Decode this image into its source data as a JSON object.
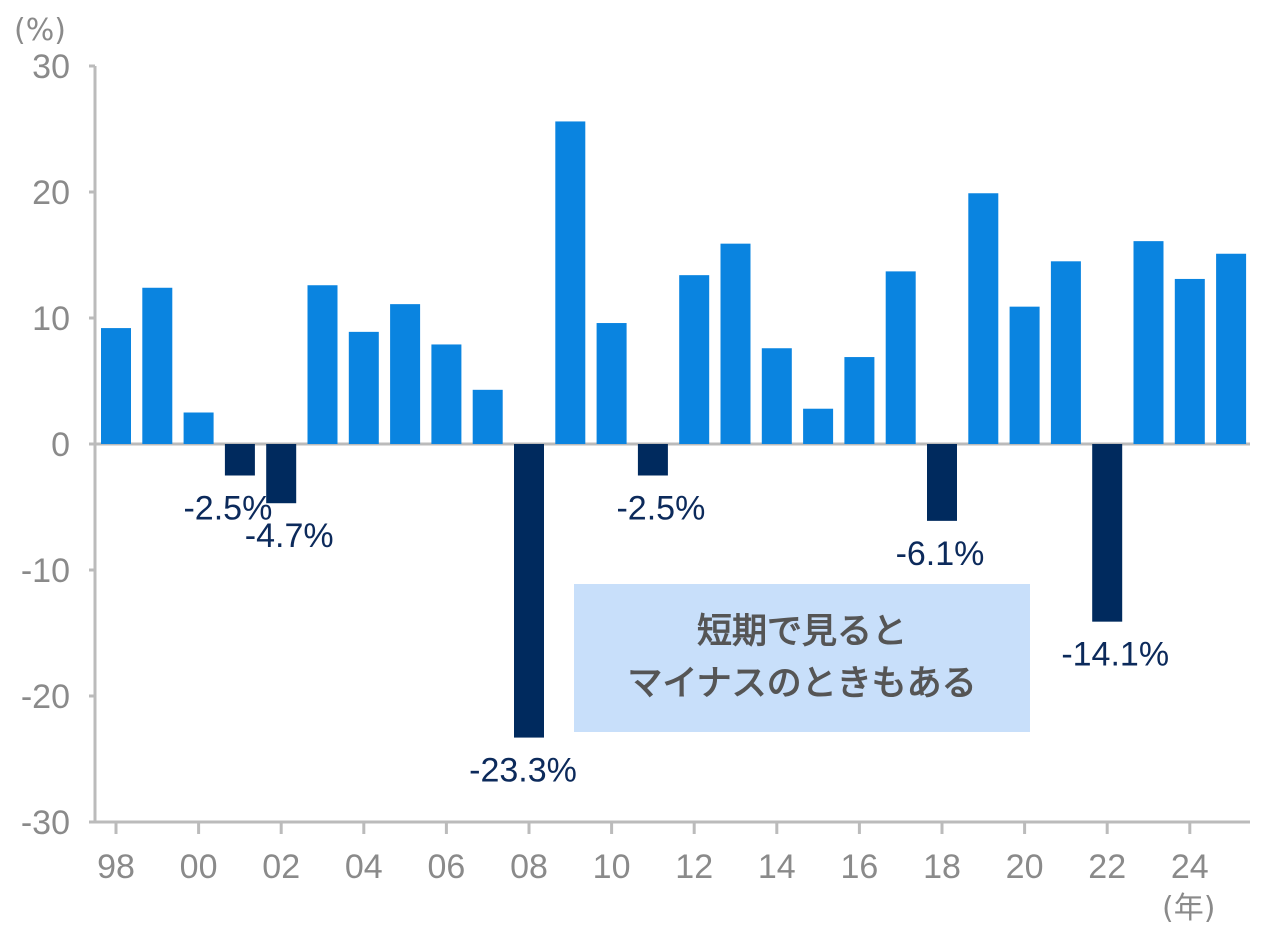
{
  "chart_data": {
    "type": "bar",
    "y_unit_label": "(%)",
    "x_unit_label": "(年)",
    "ylim": [
      -30,
      30
    ],
    "y_ticks": [
      "30",
      "20",
      "10",
      "0",
      "-10",
      "-20",
      "-30"
    ],
    "x_tick_labels": [
      "98",
      "00",
      "02",
      "04",
      "06",
      "08",
      "10",
      "12",
      "14",
      "16",
      "18",
      "20",
      "22",
      "24"
    ],
    "categories": [
      "1998",
      "1999",
      "2000",
      "2001",
      "2002",
      "2003",
      "2004",
      "2005",
      "2006",
      "2007",
      "2008",
      "2009",
      "2010",
      "2011",
      "2012",
      "2013",
      "2014",
      "2015",
      "2016",
      "2017",
      "2018",
      "2019",
      "2020",
      "2021",
      "2022",
      "2023",
      "2024",
      "2025"
    ],
    "values": [
      9.2,
      12.4,
      2.5,
      -2.5,
      -4.7,
      12.6,
      8.9,
      11.1,
      7.9,
      4.3,
      -23.3,
      25.6,
      9.6,
      -2.5,
      13.4,
      15.9,
      7.6,
      2.8,
      6.9,
      13.7,
      -6.1,
      19.9,
      10.9,
      14.5,
      -14.1,
      16.1,
      13.1,
      15.1
    ],
    "negative_labels": [
      "-2.5%",
      "-4.7%",
      "-23.3%",
      "-2.5%",
      "-6.1%",
      "-14.1%"
    ],
    "colors": {
      "positive": "#0a84e0",
      "negative": "#002a5e",
      "axis": "#bbbbbb"
    },
    "grid": false,
    "legend": "none"
  },
  "annotation": {
    "line1": "短期で見ると",
    "line2": "マイナスのときもある",
    "background": "#c8dffa"
  }
}
